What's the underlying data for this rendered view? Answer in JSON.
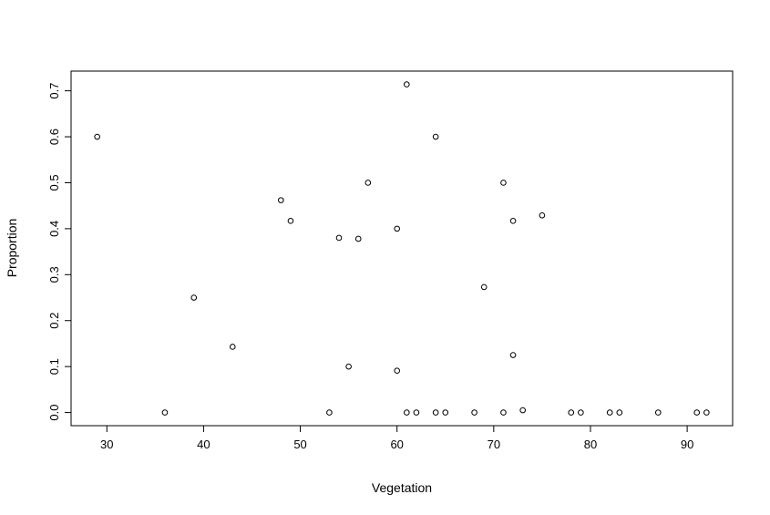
{
  "chart_data": {
    "type": "scatter",
    "title": "",
    "xlabel": "Vegetation",
    "ylabel": "Proportion",
    "xlim": [
      26.3,
      94.7
    ],
    "ylim": [
      -0.0286,
      0.7429
    ],
    "xticks": [
      30,
      40,
      50,
      60,
      70,
      80,
      90
    ],
    "xtick_labels": [
      "30",
      "40",
      "50",
      "60",
      "70",
      "80",
      "90"
    ],
    "yticks": [
      0.0,
      0.1,
      0.2,
      0.3,
      0.4,
      0.5,
      0.6,
      0.7
    ],
    "ytick_labels": [
      "0.0",
      "0.1",
      "0.2",
      "0.3",
      "0.4",
      "0.5",
      "0.6",
      "0.7"
    ],
    "grid": false,
    "legend": "none",
    "marker": "open-circle",
    "marker_color": "#000000",
    "points": [
      {
        "x": 29,
        "y": 0.6
      },
      {
        "x": 36,
        "y": 0.0
      },
      {
        "x": 39,
        "y": 0.25
      },
      {
        "x": 43,
        "y": 0.143
      },
      {
        "x": 48,
        "y": 0.462
      },
      {
        "x": 49,
        "y": 0.417
      },
      {
        "x": 53,
        "y": 0.0
      },
      {
        "x": 54,
        "y": 0.38
      },
      {
        "x": 55,
        "y": 0.1
      },
      {
        "x": 56,
        "y": 0.378
      },
      {
        "x": 57,
        "y": 0.5
      },
      {
        "x": 60,
        "y": 0.4
      },
      {
        "x": 60,
        "y": 0.091
      },
      {
        "x": 61,
        "y": 0.714
      },
      {
        "x": 61,
        "y": 0.0
      },
      {
        "x": 62,
        "y": 0.0
      },
      {
        "x": 64,
        "y": 0.6
      },
      {
        "x": 64,
        "y": 0.0
      },
      {
        "x": 65,
        "y": 0.0
      },
      {
        "x": 68,
        "y": 0.0
      },
      {
        "x": 69,
        "y": 0.273
      },
      {
        "x": 71,
        "y": 0.5
      },
      {
        "x": 71,
        "y": 0.0
      },
      {
        "x": 72,
        "y": 0.417
      },
      {
        "x": 72,
        "y": 0.125
      },
      {
        "x": 73,
        "y": 0.005
      },
      {
        "x": 75,
        "y": 0.429
      },
      {
        "x": 78,
        "y": 0.0
      },
      {
        "x": 79,
        "y": 0.0
      },
      {
        "x": 82,
        "y": 0.0
      },
      {
        "x": 83,
        "y": 0.0
      },
      {
        "x": 87,
        "y": 0.0
      },
      {
        "x": 91,
        "y": 0.0
      },
      {
        "x": 92,
        "y": 0.0
      }
    ]
  }
}
